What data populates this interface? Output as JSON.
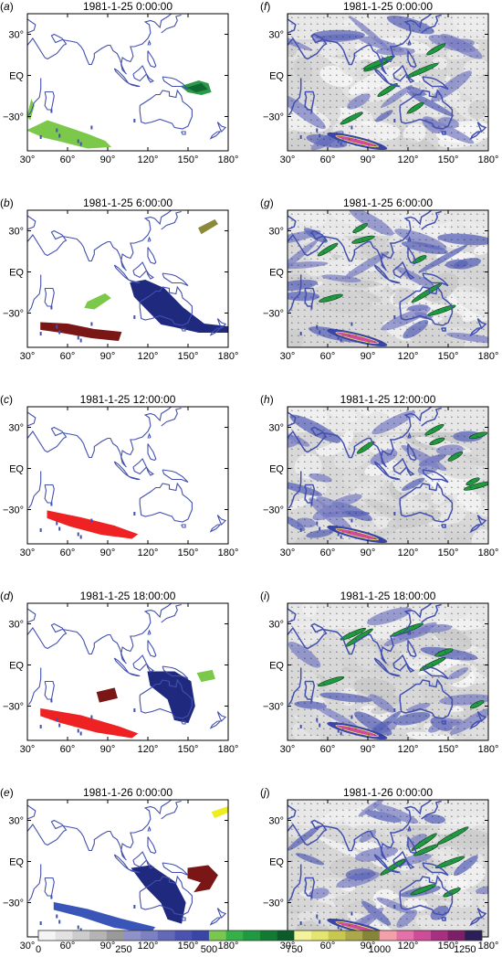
{
  "lon_ticks": [
    "30°",
    "60°",
    "90°",
    "120°",
    "150°",
    "180°"
  ],
  "lat_ticks": [
    "30°",
    "EQ",
    "−30°"
  ],
  "colorbar": {
    "tick_labels": [
      "0",
      "250",
      "500",
      "750",
      "1000",
      "1250"
    ],
    "colors": [
      "#f4f4f4",
      "#e2e2e2",
      "#cccccc",
      "#b4b4b4",
      "#9a9a9a",
      "#8f92c8",
      "#7c80c4",
      "#6468bb",
      "#4c52b1",
      "#3a45a8",
      "#78c850",
      "#38b048",
      "#1f9a40",
      "#137a34",
      "#0b5c2a",
      "#f3f49a",
      "#e4e470",
      "#c8c850",
      "#aaa848",
      "#868438",
      "#f4a0a8",
      "#e670a8",
      "#cf4c98",
      "#a83080",
      "#7e1e66",
      "#2c1e58"
    ]
  },
  "panels": [
    {
      "label": "(a)",
      "timestamp": "1981-1-25 0:00:00",
      "kind": "objects",
      "blobs": [
        {
          "color": "#7bc84a",
          "lonlat": [
            [
              30,
              -40
            ],
            [
              45,
              -33
            ],
            [
              60,
              -38
            ],
            [
              75,
              -43
            ],
            [
              88,
              -48
            ],
            [
              92,
              -52
            ],
            [
              75,
              -53
            ],
            [
              55,
              -48
            ],
            [
              42,
              -45
            ]
          ]
        },
        {
          "color": "#7bc84a",
          "lonlat": [
            [
              30,
              -30
            ],
            [
              33,
              -18
            ],
            [
              35,
              -22
            ],
            [
              32,
              -32
            ]
          ]
        },
        {
          "color": "#2a9a48",
          "lonlat": [
            [
              145,
              -8
            ],
            [
              158,
              -4
            ],
            [
              165,
              -6
            ],
            [
              167,
              -12
            ],
            [
              160,
              -14
            ],
            [
              150,
              -12
            ]
          ]
        },
        {
          "color": "#0f6a32",
          "lonlat": [
            [
              150,
              -9
            ],
            [
              160,
              -6
            ],
            [
              164,
              -10
            ],
            [
              156,
              -12
            ]
          ]
        }
      ]
    },
    {
      "label": "(f)",
      "timestamp": "1981-1-25 0:00:00",
      "kind": "field"
    },
    {
      "label": "(b)",
      "timestamp": "1981-1-25 6:00:00",
      "kind": "objects",
      "blobs": [
        {
          "color": "#8a8a3a",
          "lonlat": [
            [
              158,
              32
            ],
            [
              170,
              38
            ],
            [
              172,
              35
            ],
            [
              160,
              28
            ]
          ]
        },
        {
          "color": "#7bc84a",
          "lonlat": [
            [
              75,
              -22
            ],
            [
              88,
              -16
            ],
            [
              92,
              -19
            ],
            [
              80,
              -27
            ],
            [
              73,
              -26
            ]
          ]
        },
        {
          "color": "#1f2a7e",
          "lonlat": [
            [
              107,
              -8
            ],
            [
              118,
              -6
            ],
            [
              132,
              -12
            ],
            [
              146,
              -26
            ],
            [
              162,
              -38
            ],
            [
              180,
              -40
            ],
            [
              180,
              -44
            ],
            [
              158,
              -44
            ],
            [
              140,
              -40
            ],
            [
              130,
              -38
            ],
            [
              122,
              -30
            ],
            [
              110,
              -18
            ]
          ]
        },
        {
          "color": "#7a1616",
          "lonlat": [
            [
              40,
              -37
            ],
            [
              60,
              -38
            ],
            [
              80,
              -42
            ],
            [
              100,
              -44
            ],
            [
              98,
              -50
            ],
            [
              78,
              -48
            ],
            [
              55,
              -44
            ],
            [
              40,
              -42
            ]
          ]
        }
      ]
    },
    {
      "label": "(g)",
      "timestamp": "1981-1-25 6:00:00",
      "kind": "field"
    },
    {
      "label": "(c)",
      "timestamp": "1981-1-25 12:00:00",
      "kind": "objects",
      "blobs": [
        {
          "color": "#ee2222",
          "lonlat": [
            [
              45,
              -31
            ],
            [
              70,
              -36
            ],
            [
              95,
              -42
            ],
            [
              112,
              -48
            ],
            [
              108,
              -51
            ],
            [
              85,
              -48
            ],
            [
              62,
              -42
            ],
            [
              45,
              -36
            ]
          ]
        }
      ]
    },
    {
      "label": "(h)",
      "timestamp": "1981-1-25 12:00:00",
      "kind": "field"
    },
    {
      "label": "(d)",
      "timestamp": "1981-1-25 18:00:00",
      "kind": "objects",
      "blobs": [
        {
          "color": "#7a1616",
          "lonlat": [
            [
              82,
              -20
            ],
            [
              95,
              -17
            ],
            [
              97,
              -24
            ],
            [
              84,
              -27
            ]
          ]
        },
        {
          "color": "#7bc84a",
          "lonlat": [
            [
              157,
              -6
            ],
            [
              168,
              -4
            ],
            [
              170,
              -10
            ],
            [
              160,
              -12
            ]
          ]
        },
        {
          "color": "#1f2a7e",
          "lonlat": [
            [
              120,
              -5
            ],
            [
              140,
              -5
            ],
            [
              152,
              -12
            ],
            [
              155,
              -30
            ],
            [
              150,
              -42
            ],
            [
              140,
              -40
            ],
            [
              135,
              -25
            ],
            [
              122,
              -15
            ]
          ]
        },
        {
          "color": "#ee2222",
          "lonlat": [
            [
              40,
              -32
            ],
            [
              70,
              -37
            ],
            [
              98,
              -45
            ],
            [
              112,
              -50
            ],
            [
              108,
              -53
            ],
            [
              82,
              -49
            ],
            [
              55,
              -42
            ],
            [
              40,
              -37
            ]
          ]
        }
      ]
    },
    {
      "label": "(i)",
      "timestamp": "1981-1-25 18:00:00",
      "kind": "field"
    },
    {
      "label": "(e)",
      "timestamp": "1981-1-26 0:00:00",
      "kind": "objects",
      "blobs": [
        {
          "color": "#eded1f",
          "lonlat": [
            [
              168,
              36
            ],
            [
              180,
              40
            ],
            [
              180,
              36
            ],
            [
              170,
              32
            ]
          ]
        },
        {
          "color": "#1f2a7e",
          "lonlat": [
            [
              108,
              -5
            ],
            [
              122,
              -3
            ],
            [
              140,
              -15
            ],
            [
              148,
              -30
            ],
            [
              145,
              -45
            ],
            [
              135,
              -42
            ],
            [
              130,
              -30
            ],
            [
              118,
              -18
            ]
          ]
        },
        {
          "color": "#7a1616",
          "lonlat": [
            [
              150,
              -5
            ],
            [
              165,
              -3
            ],
            [
              172,
              -10
            ],
            [
              166,
              -20
            ],
            [
              155,
              -22
            ],
            [
              160,
              -15
            ],
            [
              150,
              -12
            ]
          ]
        },
        {
          "color": "#3a55b8",
          "lonlat": [
            [
              50,
              -30
            ],
            [
              75,
              -35
            ],
            [
              100,
              -42
            ],
            [
              125,
              -48
            ],
            [
              122,
              -52
            ],
            [
              95,
              -48
            ],
            [
              70,
              -40
            ],
            [
              50,
              -35
            ]
          ]
        }
      ]
    },
    {
      "label": "(j)",
      "timestamp": "1981-1-26 0:00:00",
      "kind": "field"
    }
  ]
}
